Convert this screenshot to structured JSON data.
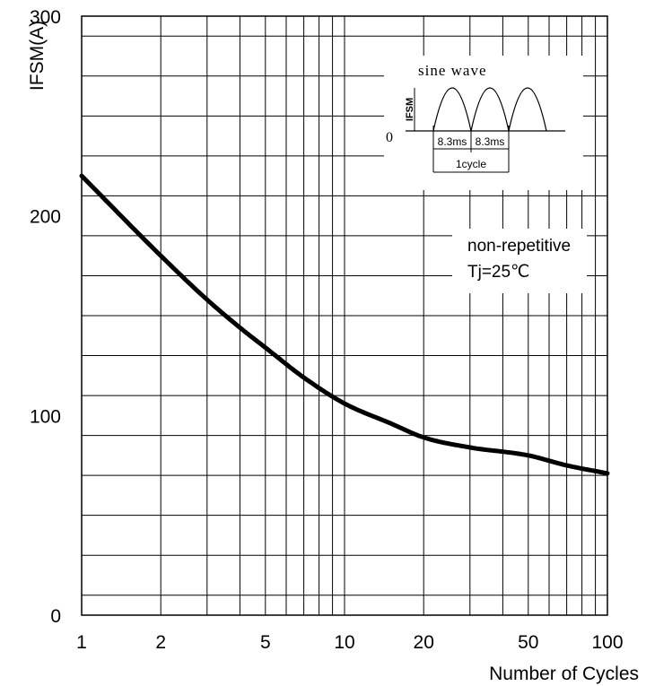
{
  "chart_data": {
    "type": "line",
    "title": "",
    "xlabel": "Number of Cycles",
    "ylabel": "IFSM(A)",
    "x_scale": "log",
    "xlim": [
      1,
      100
    ],
    "ylim": [
      0,
      300
    ],
    "grid": true,
    "x_tick_labels": [
      "1",
      "2",
      "5",
      "10",
      "20",
      "50",
      "100"
    ],
    "y_tick_labels": [
      "0",
      "100",
      "200",
      "300"
    ],
    "series": [
      {
        "x": [
          1,
          2,
          3,
          4,
          5,
          7,
          10,
          15,
          20,
          30,
          50,
          70,
          100
        ],
        "y": [
          220,
          180,
          158,
          144,
          134,
          119,
          106,
          96,
          89,
          84,
          80,
          75,
          71
        ]
      }
    ],
    "annotations": {
      "conditions_line1": "non-repetitive",
      "conditions_line2": "Tj=25℃"
    },
    "inset": {
      "title": "sine wave",
      "peak_label": "IFSM",
      "zero_label": "0",
      "half_period_1": "8.3ms",
      "half_period_2": "8.3ms",
      "period_label": "1cycle"
    }
  }
}
